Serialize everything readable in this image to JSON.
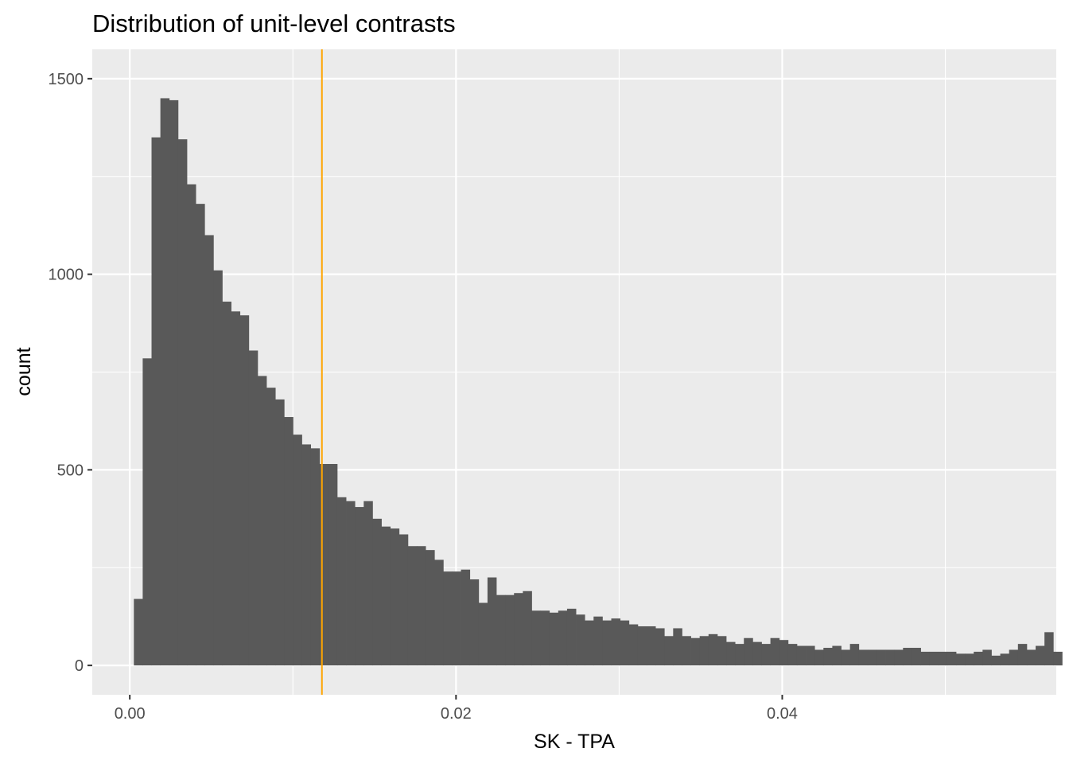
{
  "chart_data": {
    "type": "bar",
    "title": "Distribution of unit-level contrasts",
    "xlabel": "SK - TPA",
    "ylabel": "count",
    "xlim": [
      -0.0023,
      0.0568
    ],
    "ylim": [
      -75,
      1575
    ],
    "x_ticks": [
      0.0,
      0.02,
      0.04
    ],
    "x_tick_labels": [
      "0.00",
      "0.02",
      "0.04"
    ],
    "y_ticks": [
      0,
      500,
      1000,
      1500
    ],
    "y_tick_labels": [
      "0",
      "500",
      "1000",
      "1500"
    ],
    "grid": true,
    "legend": "none",
    "bin_start": 0.00025,
    "bin_width": 0.000542,
    "counts": [
      170,
      785,
      1350,
      1450,
      1445,
      1345,
      1230,
      1180,
      1100,
      1010,
      930,
      905,
      895,
      805,
      740,
      710,
      680,
      635,
      590,
      565,
      555,
      515,
      515,
      430,
      420,
      405,
      420,
      375,
      355,
      350,
      335,
      305,
      305,
      295,
      270,
      240,
      240,
      245,
      220,
      160,
      225,
      180,
      180,
      185,
      190,
      140,
      140,
      135,
      140,
      145,
      130,
      115,
      125,
      115,
      120,
      115,
      105,
      100,
      100,
      95,
      75,
      95,
      75,
      70,
      75,
      80,
      75,
      60,
      55,
      70,
      60,
      55,
      70,
      65,
      55,
      50,
      50,
      40,
      45,
      50,
      40,
      55,
      40,
      40,
      40,
      40,
      40,
      45,
      45,
      35,
      35,
      35,
      35,
      30,
      30,
      35,
      40,
      25,
      30,
      40,
      55,
      40,
      50,
      85,
      35
    ],
    "reference_line": {
      "x": 0.01178,
      "color": "#FFA500"
    },
    "colors": {
      "panel": "#EBEBEB",
      "grid_major": "#FFFFFF",
      "bar": "#595959",
      "tick": "#333333"
    }
  }
}
